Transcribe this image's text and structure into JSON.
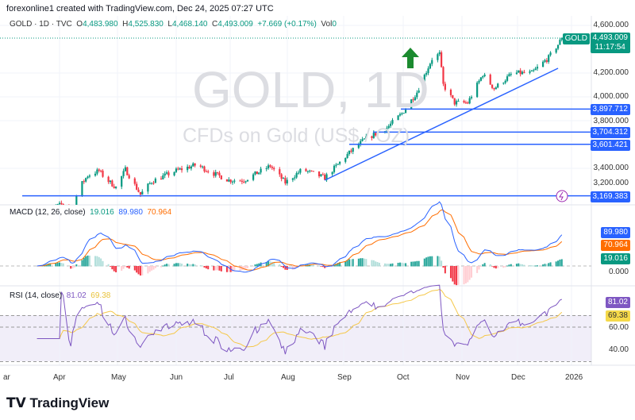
{
  "header": {
    "credit": "forexonline1 created with TradingView.com, Dec 24, 2025 07:27 UTC",
    "symbol": "GOLD · 1D · TVC",
    "o_label": "O",
    "o": "4,483.980",
    "h_label": "H",
    "h": "4,525.830",
    "l_label": "L",
    "l": "4,468.140",
    "c_label": "C",
    "c": "4,493.009",
    "change": "+7.669 (+0.17%)",
    "vol_label": "Vol",
    "vol": "0"
  },
  "watermark": {
    "title": "GOLD, 1D",
    "subtitle": "CFDs on Gold (US$ / OZ)"
  },
  "price_axis": {
    "ticks": [
      "4,600.000",
      "4,200.000",
      "4,000.000",
      "3,800.000",
      "3,400.000",
      "3,200.000"
    ],
    "symbol_tag": "GOLD",
    "last_price": "4,493.009",
    "countdown": "11:17:54"
  },
  "levels": [
    {
      "value": "3,897.712"
    },
    {
      "value": "3,704.312"
    },
    {
      "value": "3,601.421"
    },
    {
      "value": "3,169.383"
    }
  ],
  "macd": {
    "title": "MACD (12, 26, close)",
    "hist": "19.016",
    "macd": "89.980",
    "signal": "70.964",
    "zero": "0.000"
  },
  "rsi": {
    "title": "RSI (14, close)",
    "rsi": "81.02",
    "ma": "69.38",
    "ticks": [
      "60.00",
      "40.00"
    ]
  },
  "time_axis": [
    "ar",
    "Apr",
    "May",
    "Jun",
    "Jul",
    "Aug",
    "Sep",
    "Oct",
    "Nov",
    "Dec",
    "2026"
  ],
  "footer": {
    "brand": "TradingView"
  },
  "colors": {
    "up": "#089981",
    "down": "#f23645",
    "level": "#2962ff",
    "macd": "#2962ff",
    "signal": "#ff6d00",
    "rsi": "#7e57c2"
  },
  "chart_data": {
    "type": "candlestick",
    "title": "GOLD · 1D · TVC",
    "ylabel": "USD",
    "ylim": [
      3000,
      4650
    ],
    "key_closes": [
      [
        "2025-03-20",
        3030
      ],
      [
        "2025-04-03",
        3100
      ],
      [
        "2025-04-07",
        2980
      ],
      [
        "2025-04-11",
        3230
      ],
      [
        "2025-04-16",
        3340
      ],
      [
        "2025-04-22",
        3380
      ],
      [
        "2025-04-25",
        3320
      ],
      [
        "2025-05-01",
        3240
      ],
      [
        "2025-05-06",
        3390
      ],
      [
        "2025-05-14",
        3180
      ],
      [
        "2025-05-20",
        3290
      ],
      [
        "2025-06-02",
        3380
      ],
      [
        "2025-06-13",
        3430
      ],
      [
        "2025-06-20",
        3370
      ],
      [
        "2025-06-30",
        3300
      ],
      [
        "2025-07-08",
        3300
      ],
      [
        "2025-07-22",
        3420
      ],
      [
        "2025-07-30",
        3280
      ],
      [
        "2025-08-08",
        3390
      ],
      [
        "2025-08-20",
        3320
      ],
      [
        "2025-09-02",
        3530
      ],
      [
        "2025-09-10",
        3640
      ],
      [
        "2025-09-22",
        3740
      ],
      [
        "2025-09-30",
        3860
      ],
      [
        "2025-10-08",
        4040
      ],
      [
        "2025-10-16",
        4320
      ],
      [
        "2025-10-20",
        4360
      ],
      [
        "2025-10-22",
        4100
      ],
      [
        "2025-10-28",
        3950
      ],
      [
        "2025-11-04",
        3950
      ],
      [
        "2025-11-12",
        4190
      ],
      [
        "2025-11-18",
        4070
      ],
      [
        "2025-11-28",
        4200
      ],
      [
        "2025-12-08",
        4200
      ],
      [
        "2025-12-17",
        4330
      ],
      [
        "2025-12-22",
        4440
      ],
      [
        "2025-12-24",
        4493
      ]
    ],
    "horizontal_levels": [
      3897.712,
      3704.312,
      3601.421,
      3169.383
    ],
    "trendline": [
      [
        "2025-08-20",
        3300
      ],
      [
        "2025-12-22",
        4240
      ]
    ]
  }
}
